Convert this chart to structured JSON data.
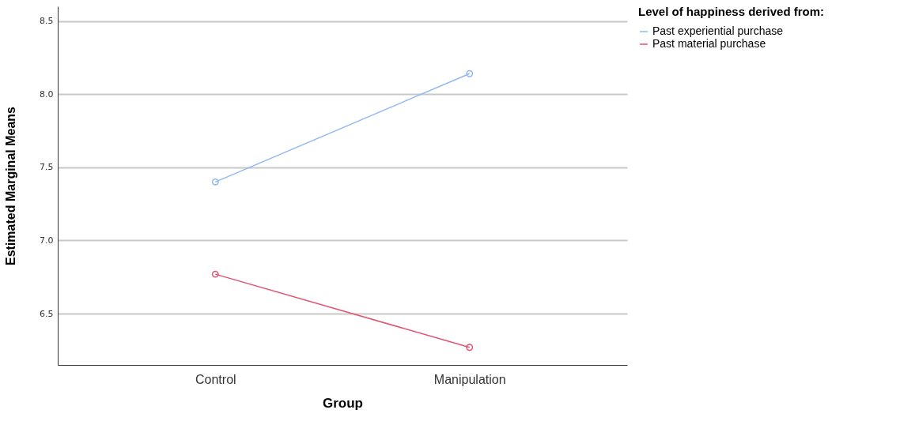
{
  "chart_data": {
    "type": "line",
    "xlabel": "Group",
    "ylabel": "Estimated Marginal Means",
    "legend_title": "Level of happiness derived from:",
    "categories": [
      "Control",
      "Manipulation"
    ],
    "series": [
      {
        "name": "Past experiential purchase",
        "color": "#8fb8ef",
        "values": [
          7.4,
          8.14
        ]
      },
      {
        "name": "Past material purchase",
        "color": "#e3516f",
        "values": [
          6.77,
          6.27
        ]
      }
    ],
    "ylim": [
      6.15,
      8.6
    ],
    "yticks": [
      6.5,
      {
        "value": 7,
        "label": "7.0"
      },
      7.5,
      {
        "value": 8,
        "label": "8.0"
      },
      8.5
    ],
    "grid": "y",
    "legend": "top right",
    "marker": "circle",
    "line_style": "solid"
  }
}
